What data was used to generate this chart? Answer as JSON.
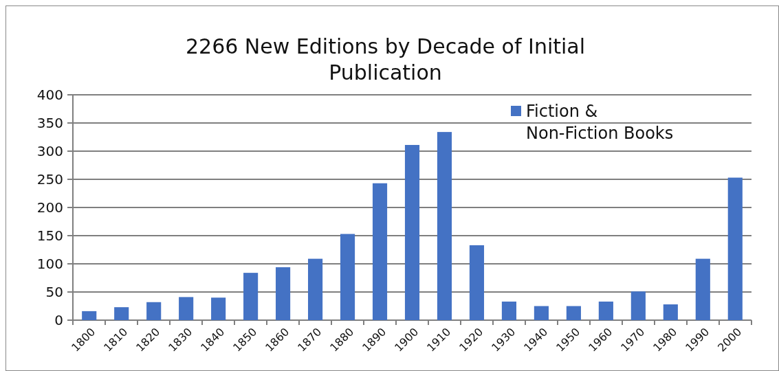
{
  "chart_data": {
    "type": "bar",
    "title": "2266 New Editions by Decade of Initial Publication",
    "categories": [
      "1800",
      "1810",
      "1820",
      "1830",
      "1840",
      "1850",
      "1860",
      "1870",
      "1880",
      "1890",
      "1900",
      "1910",
      "1920",
      "1930",
      "1940",
      "1950",
      "1960",
      "1970",
      "1980",
      "1990",
      "2000"
    ],
    "series": [
      {
        "name": "Fiction & Non-Fiction Books",
        "color": "#4472c4",
        "values": [
          16,
          23,
          32,
          41,
          40,
          84,
          94,
          109,
          153,
          243,
          311,
          334,
          133,
          33,
          25,
          25,
          33,
          51,
          28,
          109,
          253
        ]
      }
    ],
    "ylim": [
      0,
      400
    ],
    "yticks": [
      0,
      50,
      100,
      150,
      200,
      250,
      300,
      350,
      400
    ],
    "grid": "y",
    "legend": "top right"
  }
}
